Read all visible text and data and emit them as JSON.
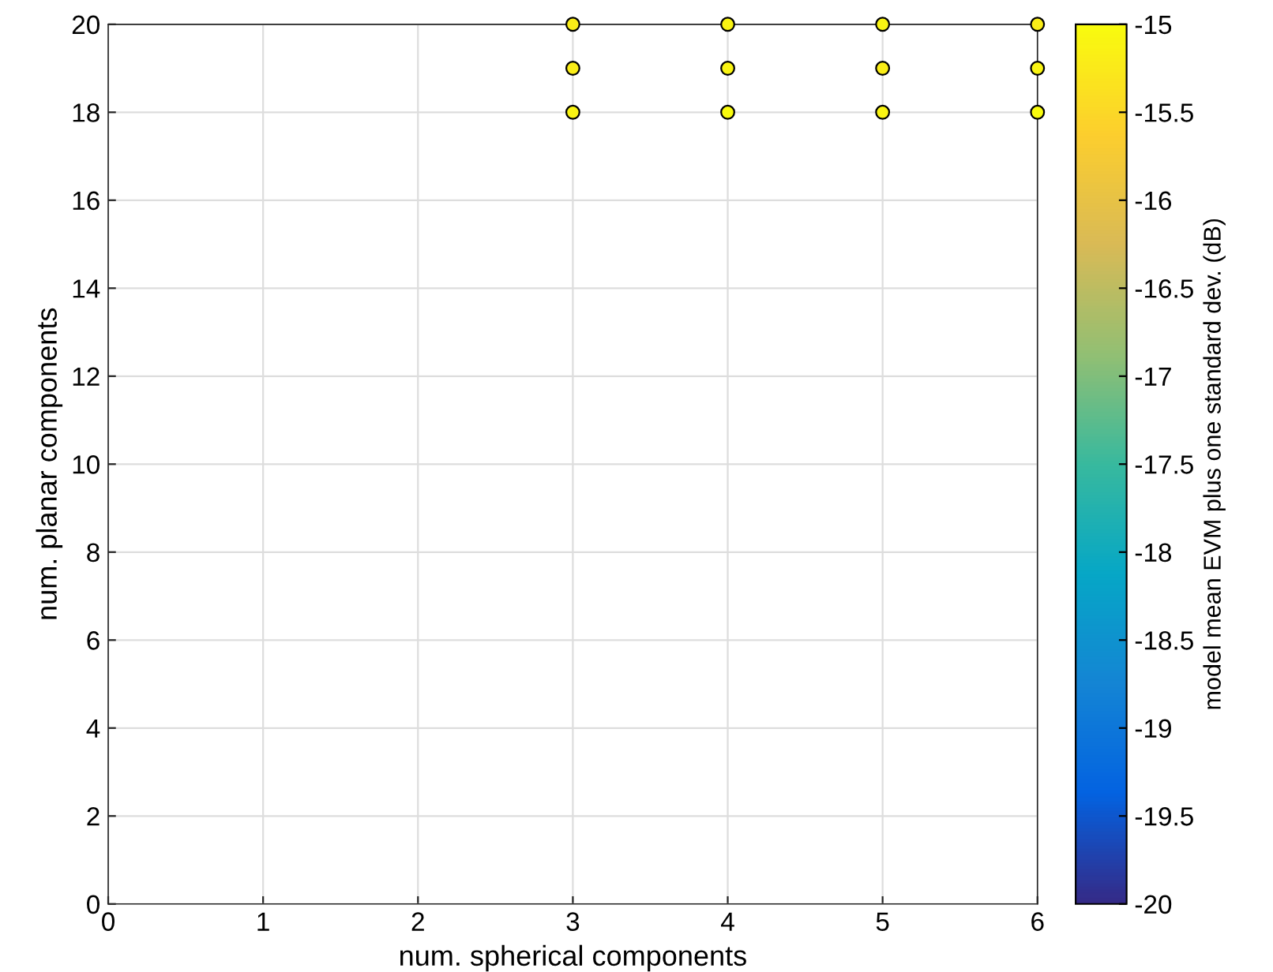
{
  "chart_data": {
    "type": "scatter",
    "xlabel": "num. spherical components",
    "ylabel": "num. planar components",
    "clabel": "model mean EVM plus one standard dev. (dB)",
    "x": [
      3,
      4,
      5,
      6,
      3,
      4,
      5,
      6,
      3,
      4,
      5,
      6
    ],
    "values": [
      18,
      18,
      18,
      18,
      19,
      19,
      19,
      19,
      20,
      20,
      20,
      20
    ],
    "cvalues": [
      -15.1,
      -15.0,
      -15.1,
      -15.0,
      -15.2,
      -15.1,
      -15.2,
      -15.1,
      -15.2,
      -15.1,
      -15.1,
      -15.2
    ],
    "marker": "circle",
    "xlim": [
      0,
      6
    ],
    "xticks": [
      0,
      1,
      2,
      3,
      4,
      5,
      6
    ],
    "ylim": [
      0,
      20
    ],
    "yticks": [
      0,
      2,
      4,
      6,
      8,
      10,
      12,
      14,
      16,
      18,
      20
    ],
    "clim": [
      -20,
      -15
    ],
    "cticks": [
      -20,
      -19.5,
      -19,
      -18.5,
      -18,
      -17.5,
      -17,
      -16.5,
      -16,
      -15.5,
      -15
    ],
    "grid": true
  }
}
